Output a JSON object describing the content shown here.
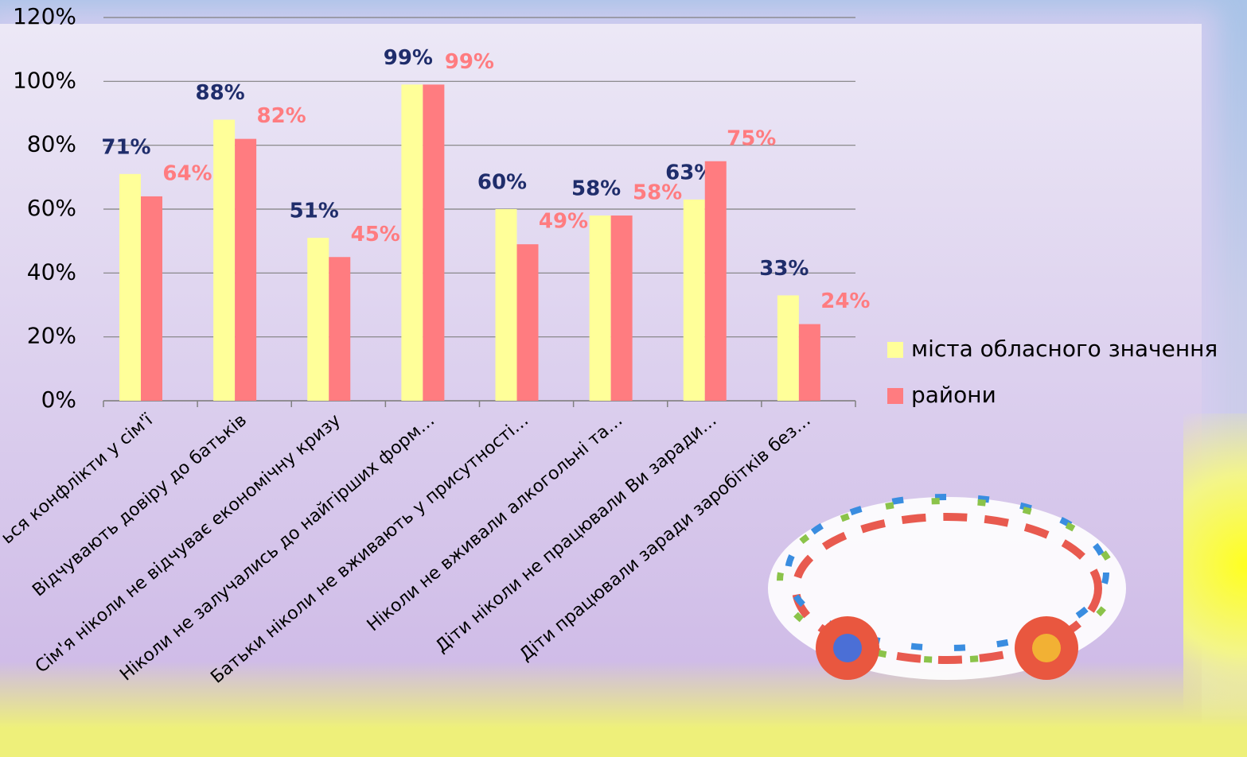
{
  "chart_data": {
    "type": "bar",
    "categories": [
      "ься конфлікти у сім'ї",
      "Відчувають  довіру до батьків",
      "Сім'я ніколи не відчуває економічну кризу",
      "Ніколи не залучались  до найгірших форм…",
      "Батьки ніколи не вживають у присутності…",
      "Ніколи не вживали алкогольні та…",
      "Діти ніколи не працювали Ви заради…",
      "Діти працювали заради заробітків без…"
    ],
    "series": [
      {
        "name": "міста обласного значення",
        "color": "#ffff99",
        "label_color": "#1f2d6b",
        "values": [
          71,
          88,
          51,
          99,
          60,
          58,
          63,
          33
        ],
        "value_labels": [
          "71%",
          "88%",
          "51%",
          "99%",
          "60%",
          "58%",
          "63%",
          "33%"
        ]
      },
      {
        "name": "райони",
        "color": "#ff7c80",
        "label_color": "#ff7c80",
        "values": [
          64,
          82,
          45,
          99,
          49,
          58,
          75,
          24
        ],
        "value_labels": [
          "64%",
          "82%",
          "45%",
          "99%",
          "49%",
          "58%",
          "75%",
          "24%"
        ]
      }
    ],
    "ylim": [
      0,
      120
    ],
    "yticks": [
      {
        "value": 0,
        "label": "0%"
      },
      {
        "value": 20,
        "label": "20%"
      },
      {
        "value": 40,
        "label": "40%"
      },
      {
        "value": 60,
        "label": "60%"
      },
      {
        "value": 80,
        "label": "80%"
      },
      {
        "value": 100,
        "label": "100%"
      },
      {
        "value": 120,
        "label": "120%"
      }
    ],
    "grid": true,
    "legend": "right"
  }
}
